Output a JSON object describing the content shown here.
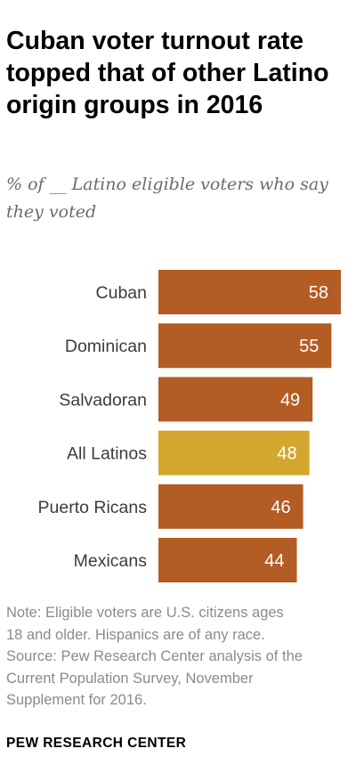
{
  "title": "Cuban voter turnout rate topped that of other Latino origin groups in 2016",
  "subtitle": "% of __ Latino eligible voters who say they voted",
  "chart_data": {
    "type": "bar",
    "orientation": "horizontal",
    "title": "Cuban voter turnout rate topped that of other Latino origin groups in 2016",
    "subtitle": "% of __ Latino eligible voters who say they voted",
    "categories": [
      "Cuban",
      "Dominican",
      "Salvadoran",
      "All Latinos",
      "Puerto Ricans",
      "Mexicans"
    ],
    "values": [
      58,
      55,
      49,
      48,
      46,
      44
    ],
    "data_labels": [
      "58",
      "55",
      "49",
      "48",
      "46",
      "44"
    ],
    "colors": [
      "#b35c24",
      "#b35c24",
      "#b35c24",
      "#d3a72d",
      "#b35c24",
      "#b35c24"
    ],
    "highlight_category": "All Latinos",
    "xlim": [
      0,
      58
    ],
    "grid": false,
    "legend": "none"
  },
  "notes": {
    "note": "Note: Eligible voters are U.S. citizens ages\n18 and older. Hispanics are of any race.",
    "source": "Source: Pew Research Center analysis of the\nCurrent Population Survey, November\nSupplement for 2016."
  },
  "footer": "PEW RESEARCH CENTER"
}
